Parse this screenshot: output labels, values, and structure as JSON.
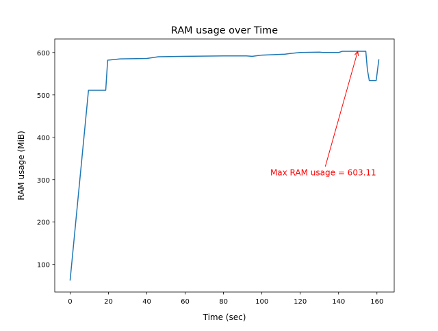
{
  "chart_data": {
    "type": "line",
    "title": "RAM usage over Time",
    "xlabel": "Time (sec)",
    "ylabel": "RAM usage (MiB)",
    "xlim": [
      -8,
      169
    ],
    "ylim": [
      35,
      632
    ],
    "xticks": [
      0,
      20,
      40,
      60,
      80,
      100,
      120,
      140,
      160
    ],
    "yticks": [
      100,
      200,
      300,
      400,
      500,
      600
    ],
    "grid": false,
    "series": [
      {
        "name": "RAM usage",
        "color": "#1f77b4",
        "x": [
          0,
          9.6,
          18.6,
          19.6,
          24,
          26,
          40,
          46,
          60,
          80,
          92,
          95,
          100,
          112,
          115,
          120,
          130,
          132,
          140,
          142,
          154.2,
          155,
          156,
          159.6,
          161
        ],
        "y": [
          62,
          511,
          511,
          582,
          584,
          585,
          586,
          590,
          591,
          592,
          592,
          591,
          594,
          596,
          598,
          600,
          601,
          600,
          600,
          603,
          603.11,
          560,
          534,
          534,
          584
        ]
      }
    ],
    "annotation": {
      "text": "Max RAM usage = 603.11",
      "color": "#ff0000",
      "point": [
        150,
        603.11
      ],
      "text_pos": [
        132,
        310
      ]
    }
  }
}
